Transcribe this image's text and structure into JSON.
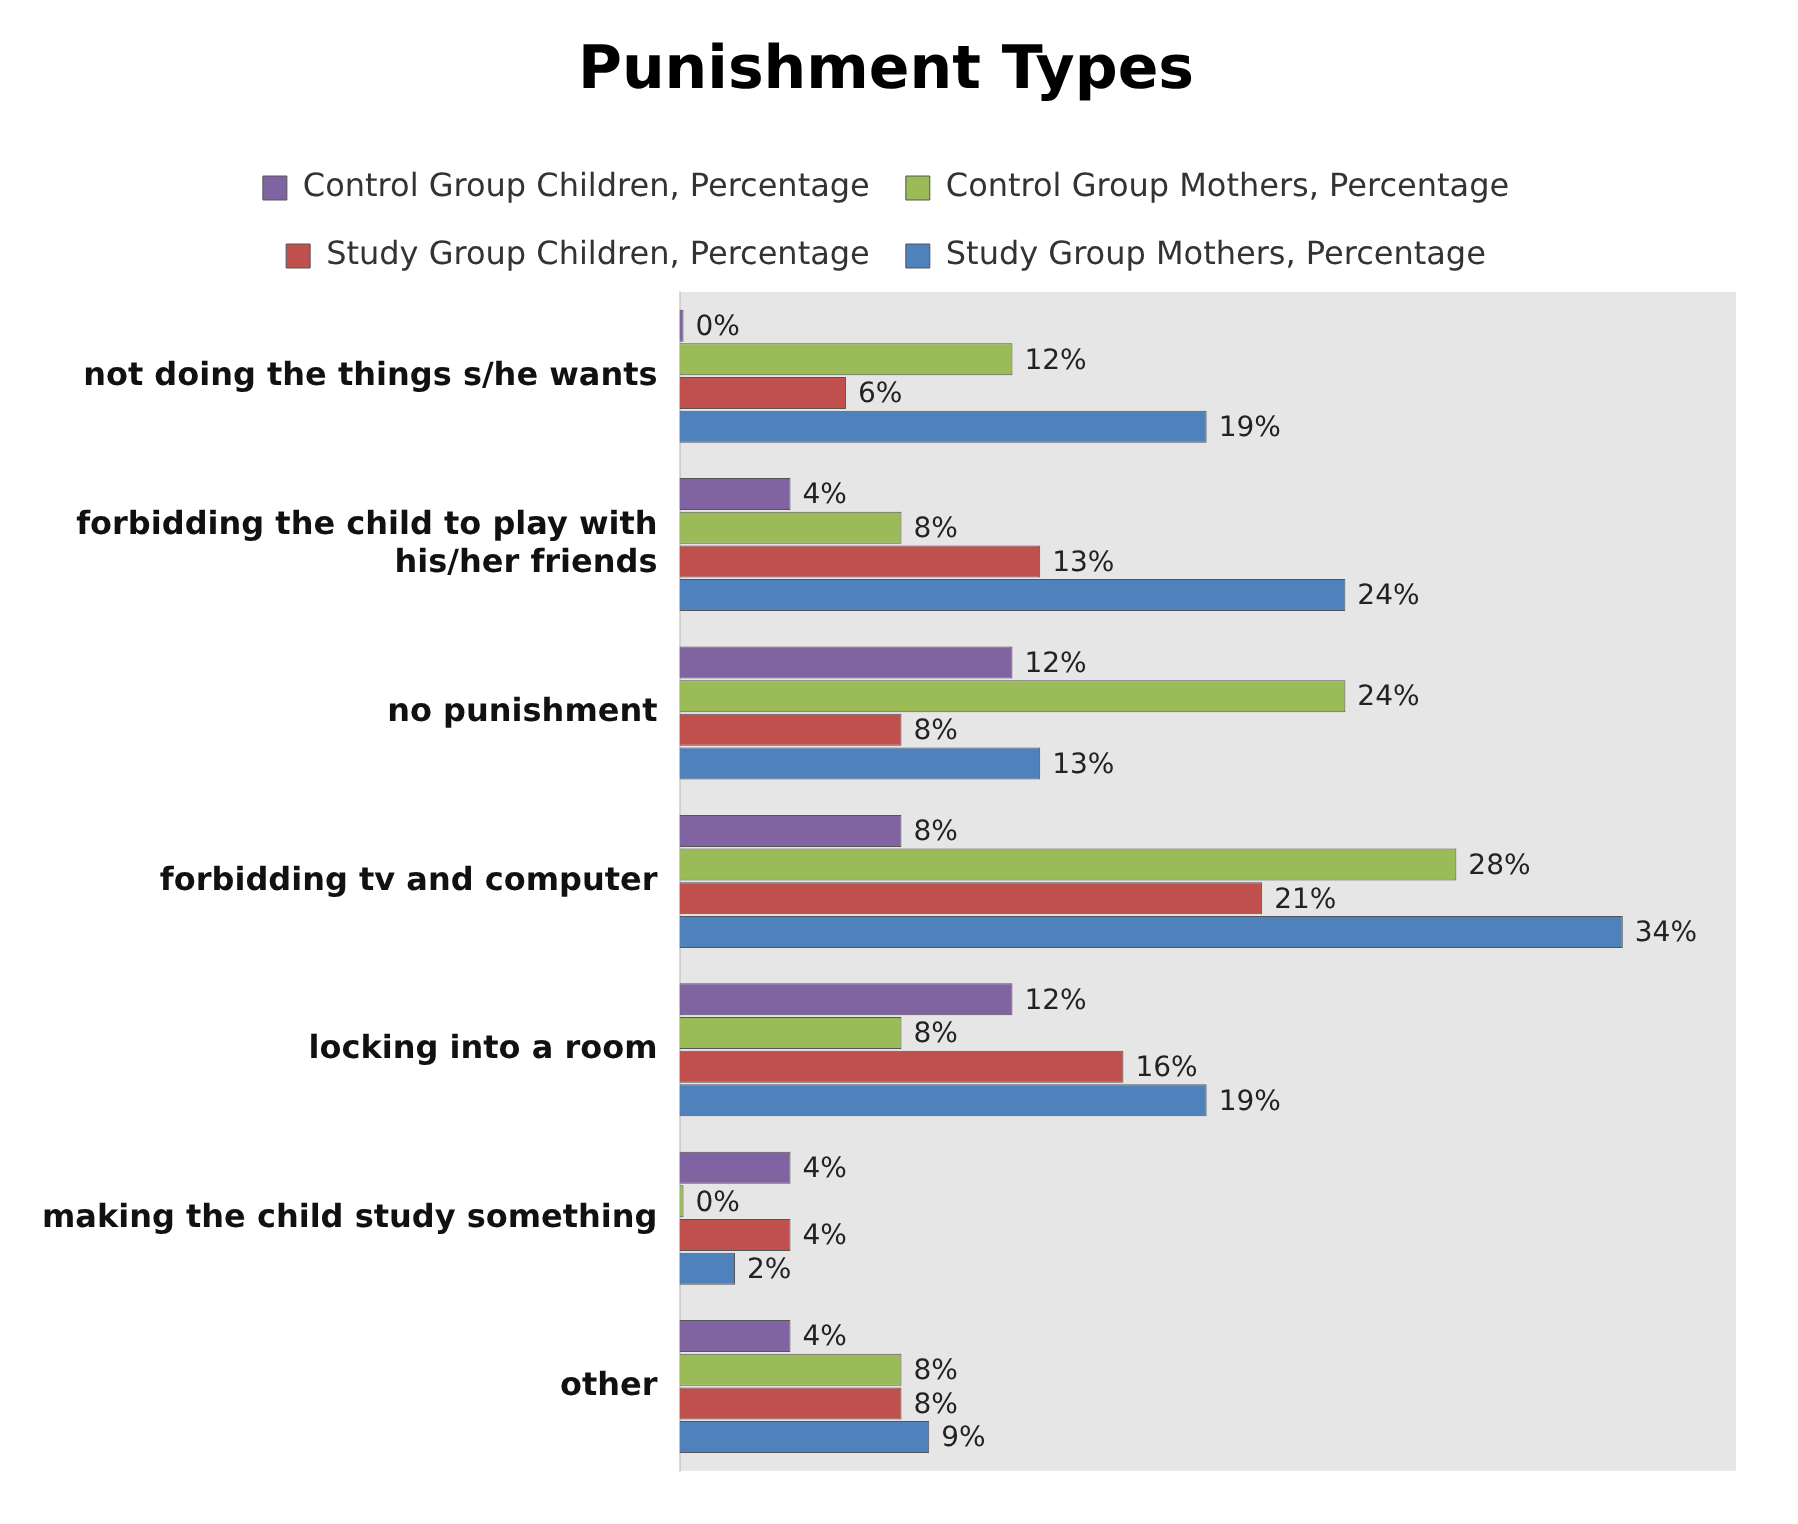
{
  "chart_data": {
    "type": "bar",
    "orientation": "horizontal",
    "title": "Punishment Types",
    "categories": [
      "not doing the things s/he wants",
      "forbidding the child to play with his/her friends",
      "no punishment",
      "forbidding tv and computer",
      "locking into a room",
      "making the child study something",
      "other"
    ],
    "series": [
      {
        "name": "Control Group Children, Percentage",
        "color": "#8064a2",
        "values": [
          0,
          4,
          12,
          8,
          12,
          4,
          4
        ],
        "value_labels": [
          "0%",
          "4%",
          "12%",
          "8%",
          "12%",
          "4%",
          "4%"
        ]
      },
      {
        "name": "Control Group Mothers, Percentage",
        "color": "#9bbb59",
        "values": [
          12,
          8,
          24,
          28,
          8,
          0,
          8
        ],
        "value_labels": [
          "12%",
          "8%",
          "24%",
          "28%",
          "8%",
          "0%",
          "8%"
        ]
      },
      {
        "name": "Study Group Children, Percentage",
        "color": "#c0504d",
        "values": [
          6,
          13,
          8,
          21,
          16,
          4,
          8
        ],
        "value_labels": [
          "6%",
          "13%",
          "8%",
          "21%",
          "16%",
          "4%",
          "8%"
        ]
      },
      {
        "name": "Study Group Mothers, Percentage",
        "color": "#4f81bd",
        "values": [
          19,
          24,
          13,
          34,
          19,
          2,
          9
        ],
        "value_labels": [
          "19%",
          "24%",
          "13%",
          "34%",
          "19%",
          "2%",
          "9%"
        ]
      }
    ],
    "legend": "top"
  }
}
